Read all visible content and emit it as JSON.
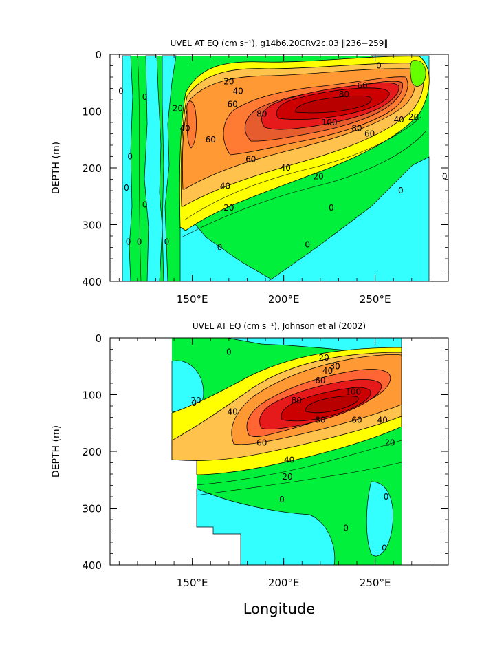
{
  "colors": {
    "cyan": "#33ffff",
    "green": "#00f03c",
    "light_green": "#66ff00",
    "yellow": "#ffff00",
    "light_orange": "#ffc24d",
    "orange": "#ff9933",
    "dark_orange": "#ff6633",
    "red": "#e61a1a",
    "dark_red": "#cc0000"
  },
  "chart_data": [
    {
      "type": "contour",
      "title": "UVEL AT EQ (cm s⁻¹), g14b6.20CRv2c.03 ‖236−259‖",
      "ylabel": "DEPTH (m)",
      "xlim": [
        105,
        290
      ],
      "ylim": [
        400,
        0
      ],
      "yticks": [
        0,
        100,
        200,
        300,
        400
      ],
      "xticks": [
        {
          "value": 150,
          "label": "150°E"
        },
        {
          "value": 200,
          "label": "200°E"
        },
        {
          "value": 250,
          "label": "250°E"
        }
      ],
      "data_extent_lon": [
        115,
        280
      ],
      "core": {
        "lon": 230,
        "depth": 100,
        "max_speed": 100
      },
      "contour_labels": [
        {
          "text": "0",
          "lon": 111,
          "depth": 65
        },
        {
          "text": "0",
          "lon": 124,
          "depth": 75
        },
        {
          "text": "0",
          "lon": 252,
          "depth": 20
        },
        {
          "text": "0",
          "lon": 116,
          "depth": 180
        },
        {
          "text": "0",
          "lon": 114,
          "depth": 235
        },
        {
          "text": "0",
          "lon": 124,
          "depth": 265
        },
        {
          "text": "0",
          "lon": 115,
          "depth": 330
        },
        {
          "text": "0",
          "lon": 121,
          "depth": 330
        },
        {
          "text": "0",
          "lon": 136,
          "depth": 330
        },
        {
          "text": "0",
          "lon": 165,
          "depth": 340
        },
        {
          "text": "0",
          "lon": 213,
          "depth": 335
        },
        {
          "text": "0",
          "lon": 226,
          "depth": 270
        },
        {
          "text": "0",
          "lon": 264,
          "depth": 240
        },
        {
          "text": "0",
          "lon": 288,
          "depth": 215
        },
        {
          "text": "20",
          "lon": 170,
          "depth": 48
        },
        {
          "text": "40",
          "lon": 175,
          "depth": 65
        },
        {
          "text": "60",
          "lon": 172,
          "depth": 88
        },
        {
          "text": "80",
          "lon": 188,
          "depth": 105
        },
        {
          "text": "80",
          "lon": 233,
          "depth": 70
        },
        {
          "text": "60",
          "lon": 243,
          "depth": 55
        },
        {
          "text": "100",
          "lon": 225,
          "depth": 120
        },
        {
          "text": "80",
          "lon": 240,
          "depth": 130
        },
        {
          "text": "60",
          "lon": 247,
          "depth": 140
        },
        {
          "text": "40",
          "lon": 263,
          "depth": 115
        },
        {
          "text": "20",
          "lon": 271,
          "depth": 110
        },
        {
          "text": "20",
          "lon": 142,
          "depth": 95
        },
        {
          "text": "40",
          "lon": 146,
          "depth": 130
        },
        {
          "text": "60",
          "lon": 160,
          "depth": 150
        },
        {
          "text": "60",
          "lon": 182,
          "depth": 185
        },
        {
          "text": "40",
          "lon": 201,
          "depth": 200
        },
        {
          "text": "40",
          "lon": 168,
          "depth": 232
        },
        {
          "text": "20",
          "lon": 219,
          "depth": 215
        },
        {
          "text": "20",
          "lon": 170,
          "depth": 270
        }
      ]
    },
    {
      "type": "contour",
      "title": "UVEL AT EQ (cm s⁻¹), Johnson et al (2002)",
      "xlabel": "Longitude",
      "ylabel": "DEPTH (m)",
      "xlim": [
        105,
        290
      ],
      "ylim": [
        400,
        0
      ],
      "yticks": [
        0,
        100,
        200,
        300,
        400
      ],
      "xticks": [
        {
          "value": 150,
          "label": "150°E"
        },
        {
          "value": 200,
          "label": "200°E"
        },
        {
          "value": 250,
          "label": "250°E"
        }
      ],
      "data_extent_lon": [
        143,
        265
      ],
      "core": {
        "lon": 222,
        "depth": 110,
        "max_speed": 100
      },
      "contour_labels": [
        {
          "text": "0",
          "lon": 170,
          "depth": 25
        },
        {
          "text": "0",
          "lon": 151,
          "depth": 115
        },
        {
          "text": "20",
          "lon": 152,
          "depth": 110
        },
        {
          "text": "40",
          "lon": 172,
          "depth": 130
        },
        {
          "text": "20",
          "lon": 222,
          "depth": 35
        },
        {
          "text": "30",
          "lon": 228,
          "depth": 50
        },
        {
          "text": "40",
          "lon": 224,
          "depth": 58
        },
        {
          "text": "60",
          "lon": 220,
          "depth": 75
        },
        {
          "text": "80",
          "lon": 207,
          "depth": 110
        },
        {
          "text": "100",
          "lon": 238,
          "depth": 95
        },
        {
          "text": "80",
          "lon": 220,
          "depth": 145
        },
        {
          "text": "60",
          "lon": 240,
          "depth": 145
        },
        {
          "text": "60",
          "lon": 188,
          "depth": 185
        },
        {
          "text": "40",
          "lon": 254,
          "depth": 145
        },
        {
          "text": "40",
          "lon": 203,
          "depth": 215
        },
        {
          "text": "20",
          "lon": 258,
          "depth": 185
        },
        {
          "text": "20",
          "lon": 202,
          "depth": 245
        },
        {
          "text": "0",
          "lon": 199,
          "depth": 285
        },
        {
          "text": "0",
          "lon": 234,
          "depth": 335
        },
        {
          "text": "0",
          "lon": 256,
          "depth": 280
        },
        {
          "text": "0",
          "lon": 255,
          "depth": 370
        }
      ]
    }
  ]
}
